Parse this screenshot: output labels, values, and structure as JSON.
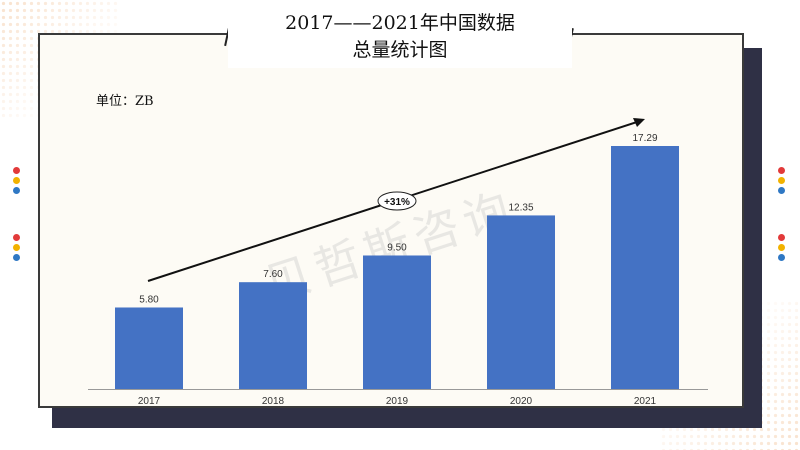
{
  "title_line1": "2017——2021年中国数据",
  "title_line2": "总量统计图",
  "unit_label": "单位：ZB",
  "growth_label": "+31%",
  "colors": {
    "bar": "#4472c4",
    "card_shadow": "#2f3045"
  },
  "chart_data": {
    "type": "bar",
    "categories": [
      "2017",
      "2018",
      "2019",
      "2020",
      "2021"
    ],
    "values": [
      5.8,
      7.6,
      9.5,
      12.35,
      17.29
    ],
    "value_labels": [
      "5.80",
      "7.60",
      "9.50",
      "12.35",
      "17.29"
    ],
    "ylim": [
      0,
      20
    ],
    "grid": false,
    "annotation": "+31%"
  }
}
